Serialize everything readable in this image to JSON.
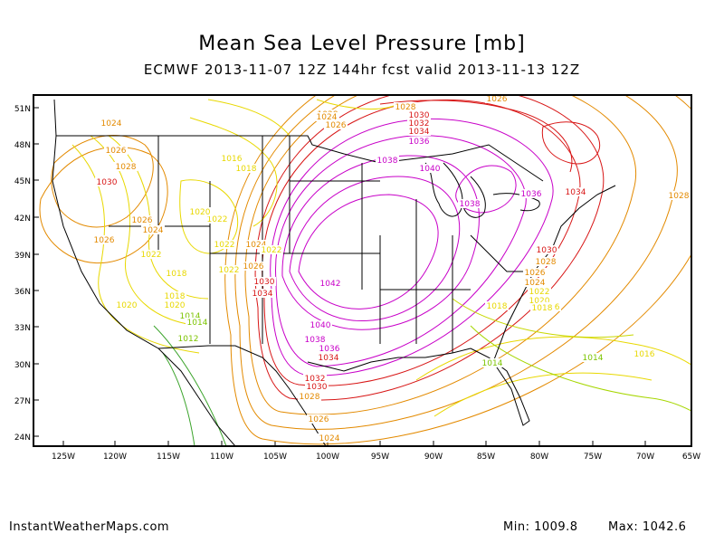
{
  "header": {
    "title": "Mean Sea Level Pressure [mb]",
    "subtitle": "ECMWF 2013-11-07 12Z 144hr fcst valid 2013-11-13 12Z"
  },
  "map": {
    "lat_labels": [
      "51N",
      "48N",
      "45N",
      "42N",
      "39N",
      "36N",
      "33N",
      "30N",
      "27N",
      "24N"
    ],
    "lon_labels": [
      "125W",
      "120W",
      "115W",
      "110W",
      "105W",
      "100W",
      "95W",
      "90W",
      "85W",
      "80W",
      "75W",
      "70W",
      "65W"
    ],
    "contour_labels": [
      "1028",
      "1026",
      "1030",
      "1032",
      "1034",
      "1036",
      "1026",
      "1028",
      "1024",
      "1026",
      "1028",
      "1030",
      "1024",
      "1026",
      "1022",
      "1026",
      "1024",
      "1022",
      "1018",
      "1016",
      "1018",
      "1020",
      "1022",
      "1022",
      "1020",
      "1024",
      "1022",
      "1026",
      "1030",
      "1034",
      "1018",
      "1020",
      "1014",
      "1012",
      "1014",
      "1038",
      "1040",
      "1038",
      "1036",
      "1034",
      "1042",
      "1040",
      "1038",
      "1036",
      "1034",
      "1032",
      "1030",
      "1028",
      "1026",
      "1024",
      "1030",
      "1028",
      "1026",
      "1024",
      "1022",
      "1020",
      "1018",
      "1016",
      "1018",
      "1014",
      "1014",
      "1016",
      "1028"
    ],
    "colors": {
      "frame": "#000000",
      "coast": "#000000",
      "low": "#3aa32a",
      "mid": "#e8d800",
      "orange": "#e38a00",
      "red": "#d81616",
      "magenta": "#c800c8"
    }
  },
  "footer": {
    "site": "InstantWeatherMaps.com",
    "min_label": "Min: 1009.8",
    "max_label": "Max: 1042.6"
  }
}
